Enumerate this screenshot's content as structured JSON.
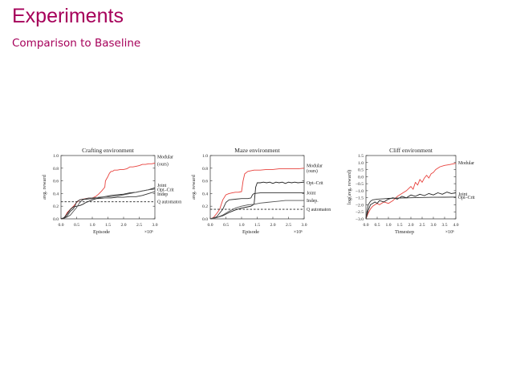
{
  "slide": {
    "title": "Experiments",
    "subtitle": "Comparison to Baseline",
    "accent_color": "#a6005a"
  },
  "chart_data": [
    {
      "type": "line",
      "title": "Crafting environment",
      "xlabel": "Episode",
      "x_multiplier": "×10⁶",
      "ylabel": "avg. reward",
      "xlim": [
        0,
        3
      ],
      "ylim": [
        0,
        1
      ],
      "xticks": [
        "0.0",
        "0.5",
        "1.0",
        "1.5",
        "2.0",
        "2.5",
        "3.0"
      ],
      "yticks": [
        "0.0",
        "0.2",
        "0.4",
        "0.6",
        "0.8",
        "1.0"
      ],
      "xtick_values": [
        0,
        0.5,
        1,
        1.5,
        2,
        2.5,
        3
      ],
      "ytick_values": [
        0,
        0.2,
        0.4,
        0.6,
        0.8,
        1
      ],
      "grid": false,
      "labels_right": [
        {
          "text": "Modular",
          "y": 0.98
        },
        {
          "text": "(ours)",
          "y": 0.87
        },
        {
          "text": "Joint",
          "y": 0.53
        },
        {
          "text": "Opt–Crit",
          "y": 0.46
        },
        {
          "text": "Indep",
          "y": 0.39
        },
        {
          "text": "Q automaton",
          "y": 0.27
        }
      ],
      "series": [
        {
          "name": "Modular",
          "color": "#e8413c",
          "dashed": false,
          "x": [
            0,
            0.1,
            0.2,
            0.3,
            0.4,
            0.5,
            0.6,
            0.7,
            0.8,
            0.9,
            1.0,
            1.1,
            1.2,
            1.3,
            1.4,
            1.42,
            1.5,
            1.55,
            1.6,
            1.65,
            1.7,
            1.8,
            1.9,
            2.0,
            2.1,
            2.2,
            2.3,
            2.4,
            2.5,
            2.6,
            2.7,
            2.8,
            2.9,
            3.0
          ],
          "y": [
            0,
            0.01,
            0.1,
            0.15,
            0.2,
            0.26,
            0.3,
            0.31,
            0.32,
            0.33,
            0.33,
            0.35,
            0.39,
            0.44,
            0.5,
            0.6,
            0.67,
            0.72,
            0.75,
            0.75,
            0.77,
            0.77,
            0.78,
            0.78,
            0.79,
            0.82,
            0.82,
            0.83,
            0.84,
            0.86,
            0.86,
            0.87,
            0.87,
            0.88
          ]
        },
        {
          "name": "Joint",
          "color": "#222222",
          "dashed": false,
          "x": [
            0,
            0.1,
            0.2,
            0.3,
            0.4,
            0.5,
            0.6,
            0.7,
            0.8,
            0.9,
            1.0,
            1.2,
            1.4,
            1.6,
            1.8,
            2.0,
            2.2,
            2.4,
            2.6,
            2.8,
            3.0
          ],
          "y": [
            0,
            0.02,
            0.08,
            0.15,
            0.19,
            0.2,
            0.21,
            0.23,
            0.26,
            0.28,
            0.3,
            0.33,
            0.35,
            0.37,
            0.38,
            0.39,
            0.41,
            0.42,
            0.44,
            0.46,
            0.49
          ]
        },
        {
          "name": "Opt–Crit",
          "color": "#555555",
          "dashed": false,
          "x": [
            0,
            0.1,
            0.2,
            0.3,
            0.4,
            0.5,
            0.6,
            0.7,
            0.8,
            0.9,
            1.0,
            1.2,
            1.4,
            1.6,
            1.8,
            2.0,
            2.2,
            2.4,
            2.6,
            2.8,
            3.0
          ],
          "y": [
            0,
            0.01,
            0.03,
            0.06,
            0.12,
            0.18,
            0.26,
            0.3,
            0.32,
            0.33,
            0.33,
            0.34,
            0.35,
            0.35,
            0.36,
            0.38,
            0.4,
            0.42,
            0.44,
            0.46,
            0.47
          ]
        },
        {
          "name": "Indep",
          "color": "#333333",
          "dashed": false,
          "x": [
            0,
            0.1,
            0.2,
            0.3,
            0.4,
            0.45,
            0.5,
            0.6,
            0.7,
            0.8,
            1.0,
            1.2,
            1.4,
            1.6,
            1.8,
            2.0,
            2.2,
            2.4,
            2.6,
            2.8,
            3.0
          ],
          "y": [
            0,
            0.01,
            0.05,
            0.12,
            0.16,
            0.21,
            0.27,
            0.3,
            0.31,
            0.31,
            0.32,
            0.32,
            0.33,
            0.33,
            0.34,
            0.34,
            0.35,
            0.35,
            0.37,
            0.4,
            0.43
          ]
        },
        {
          "name": "Q automaton",
          "color": "#222222",
          "dashed": true,
          "x": [
            0,
            3.0
          ],
          "y": [
            0.27,
            0.27
          ]
        }
      ]
    },
    {
      "type": "line",
      "title": "Maze environment",
      "xlabel": "Episode",
      "x_multiplier": "×10⁶",
      "ylabel": "avg. reward",
      "xlim": [
        0,
        3
      ],
      "ylim": [
        0,
        1
      ],
      "xticks": [
        "0.0",
        "0.5",
        "1.0",
        "1.5",
        "2.0",
        "2.5",
        "3.0"
      ],
      "yticks": [
        "0.0",
        "0.2",
        "0.4",
        "0.6",
        "0.8",
        "1.0"
      ],
      "xtick_values": [
        0,
        0.5,
        1,
        1.5,
        2,
        2.5,
        3
      ],
      "ytick_values": [
        0,
        0.2,
        0.4,
        0.6,
        0.8,
        1
      ],
      "grid": false,
      "labels_right": [
        {
          "text": "Modular",
          "y": 0.84
        },
        {
          "text": "(ours)",
          "y": 0.76
        },
        {
          "text": "Opt–Crit",
          "y": 0.57
        },
        {
          "text": "Joint",
          "y": 0.41
        },
        {
          "text": "Indep.",
          "y": 0.29
        },
        {
          "text": "Q automaton",
          "y": 0.15
        }
      ],
      "series": [
        {
          "name": "Modular",
          "color": "#e8413c",
          "dashed": false,
          "x": [
            0,
            0.1,
            0.2,
            0.3,
            0.4,
            0.5,
            0.6,
            0.7,
            0.8,
            0.9,
            1.0,
            1.05,
            1.1,
            1.2,
            1.4,
            1.6,
            1.8,
            2.0,
            2.2,
            2.4,
            2.6,
            2.8,
            3.0
          ],
          "y": [
            0,
            0.02,
            0.08,
            0.15,
            0.3,
            0.38,
            0.4,
            0.41,
            0.42,
            0.42,
            0.43,
            0.6,
            0.71,
            0.75,
            0.77,
            0.77,
            0.78,
            0.78,
            0.79,
            0.79,
            0.79,
            0.79,
            0.8
          ]
        },
        {
          "name": "Opt–Crit",
          "color": "#222222",
          "dashed": false,
          "x": [
            0,
            0.2,
            0.4,
            0.6,
            0.8,
            1.0,
            1.2,
            1.3,
            1.4,
            1.45,
            1.5,
            1.6,
            1.7,
            1.8,
            1.9,
            2.0,
            2.1,
            2.2,
            2.3,
            2.4,
            2.5,
            2.6,
            2.7,
            2.8,
            3.0
          ],
          "y": [
            0,
            0.02,
            0.05,
            0.1,
            0.14,
            0.17,
            0.19,
            0.2,
            0.23,
            0.5,
            0.57,
            0.57,
            0.58,
            0.57,
            0.58,
            0.56,
            0.58,
            0.57,
            0.58,
            0.56,
            0.58,
            0.57,
            0.58,
            0.57,
            0.58
          ]
        },
        {
          "name": "Joint",
          "color": "#333333",
          "dashed": false,
          "x": [
            0,
            0.2,
            0.4,
            0.5,
            0.6,
            0.8,
            1.0,
            1.2,
            1.3,
            1.35,
            1.4,
            1.6,
            1.8,
            2.0,
            2.2,
            2.4,
            2.6,
            2.8,
            3.0
          ],
          "y": [
            0,
            0.03,
            0.15,
            0.26,
            0.3,
            0.31,
            0.32,
            0.32,
            0.33,
            0.38,
            0.4,
            0.41,
            0.41,
            0.41,
            0.41,
            0.41,
            0.41,
            0.41,
            0.41
          ]
        },
        {
          "name": "Indep.",
          "color": "#555555",
          "dashed": false,
          "x": [
            0,
            0.2,
            0.4,
            0.6,
            0.8,
            1.0,
            1.2,
            1.4,
            1.6,
            1.8,
            2.0,
            2.2,
            2.4,
            2.6,
            2.8,
            3.0
          ],
          "y": [
            0,
            0.02,
            0.06,
            0.12,
            0.17,
            0.2,
            0.22,
            0.23,
            0.25,
            0.26,
            0.27,
            0.28,
            0.29,
            0.29,
            0.29,
            0.29
          ]
        },
        {
          "name": "Q automaton",
          "color": "#222222",
          "dashed": true,
          "x": [
            0,
            3.0
          ],
          "y": [
            0.15,
            0.15
          ]
        }
      ]
    },
    {
      "type": "line",
      "title": "Cliff environment",
      "xlabel": "Timestep",
      "x_multiplier": "×10⁶",
      "ylabel": "log(avg. reward)",
      "xlim": [
        0,
        4
      ],
      "ylim": [
        -3,
        1.5
      ],
      "xticks": [
        "0.0",
        "0.5",
        "1.0",
        "1.5",
        "2.0",
        "2.5",
        "3.0",
        "3.5",
        "4.0"
      ],
      "yticks": [
        "−3.0",
        "−2.5",
        "−2.0",
        "−1.5",
        "−1.0",
        "−0.5",
        "0.0",
        "0.5",
        "1.0",
        "1.5"
      ],
      "xtick_values": [
        0,
        0.5,
        1,
        1.5,
        2,
        2.5,
        3,
        3.5,
        4
      ],
      "ytick_values": [
        -3,
        -2.5,
        -2,
        -1.5,
        -1,
        -0.5,
        0,
        0.5,
        1,
        1.5
      ],
      "grid": false,
      "labels_right": [
        {
          "text": "Modular",
          "y": 1.0
        },
        {
          "text": "Joint",
          "y": -1.22
        },
        {
          "text": "Opt–Crit",
          "y": -1.45
        }
      ],
      "series": [
        {
          "name": "Modular",
          "color": "#e8413c",
          "dashed": false,
          "x": [
            0,
            0.1,
            0.2,
            0.3,
            0.4,
            0.5,
            0.6,
            0.8,
            1.0,
            1.2,
            1.4,
            1.6,
            1.8,
            2.0,
            2.1,
            2.2,
            2.3,
            2.4,
            2.5,
            2.6,
            2.7,
            2.8,
            2.9,
            3.0,
            3.1,
            3.2,
            3.3,
            3.5,
            3.7,
            4.0
          ],
          "y": [
            -3.0,
            -2.6,
            -2.3,
            -2.1,
            -2.0,
            -1.9,
            -2.0,
            -1.8,
            -1.9,
            -1.7,
            -1.4,
            -1.2,
            -1.0,
            -0.7,
            -0.9,
            -0.4,
            -0.6,
            -0.2,
            -0.4,
            -0.1,
            0.1,
            -0.1,
            0.2,
            0.3,
            0.5,
            0.6,
            0.7,
            0.8,
            0.85,
            0.95
          ]
        },
        {
          "name": "Joint",
          "color": "#222222",
          "dashed": false,
          "x": [
            0,
            0.1,
            0.2,
            0.3,
            0.4,
            0.5,
            0.6,
            0.8,
            1.0,
            1.2,
            1.4,
            1.6,
            1.8,
            2.0,
            2.2,
            2.4,
            2.6,
            2.8,
            3.0,
            3.2,
            3.4,
            3.6,
            3.8,
            4.0
          ],
          "y": [
            -3.0,
            -2.4,
            -2.0,
            -1.9,
            -1.8,
            -1.9,
            -1.7,
            -1.8,
            -1.6,
            -1.5,
            -1.6,
            -1.4,
            -1.5,
            -1.3,
            -1.4,
            -1.25,
            -1.35,
            -1.2,
            -1.3,
            -1.15,
            -1.25,
            -1.1,
            -1.2,
            -1.15
          ]
        },
        {
          "name": "Opt–Crit",
          "color": "#333333",
          "dashed": false,
          "x": [
            0,
            0.1,
            0.2,
            0.3,
            0.5,
            0.8,
            1.0,
            1.5,
            2.0,
            2.5,
            3.0,
            3.5,
            4.0
          ],
          "y": [
            -3.0,
            -2.0,
            -1.75,
            -1.65,
            -1.6,
            -1.57,
            -1.55,
            -1.52,
            -1.5,
            -1.48,
            -1.47,
            -1.46,
            -1.45
          ]
        }
      ]
    }
  ]
}
